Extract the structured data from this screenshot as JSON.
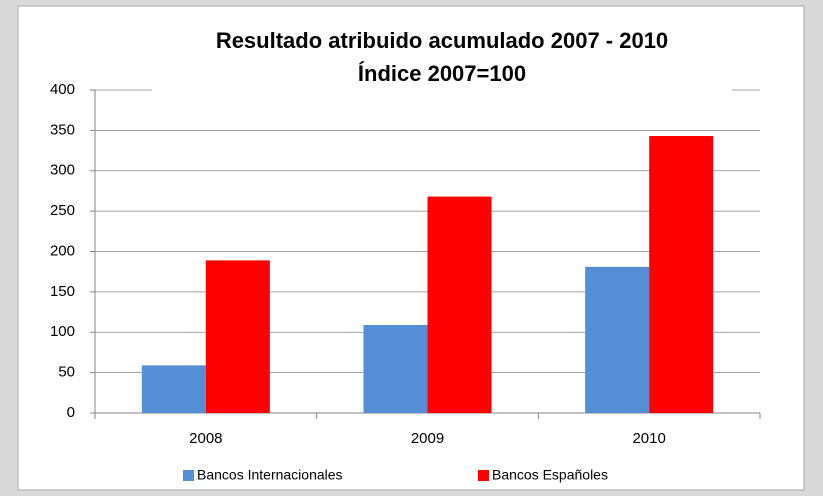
{
  "chart_data": {
    "type": "bar",
    "title": "Resultado atribuido acumulado 2007 - 2010",
    "subtitle": "Índice 2007=100",
    "categories": [
      "2008",
      "2009",
      "2010"
    ],
    "series": [
      {
        "name": "Bancos Internacionales",
        "color": "#558ed5",
        "values": [
          59,
          109,
          181
        ]
      },
      {
        "name": "Bancos Españoles",
        "color": "#ff0000",
        "values": [
          189,
          268,
          343
        ]
      }
    ],
    "ylim": [
      0,
      400
    ],
    "yticks": [
      0,
      50,
      100,
      150,
      200,
      250,
      300,
      350,
      400
    ],
    "grid": true,
    "legend": "bottom"
  }
}
